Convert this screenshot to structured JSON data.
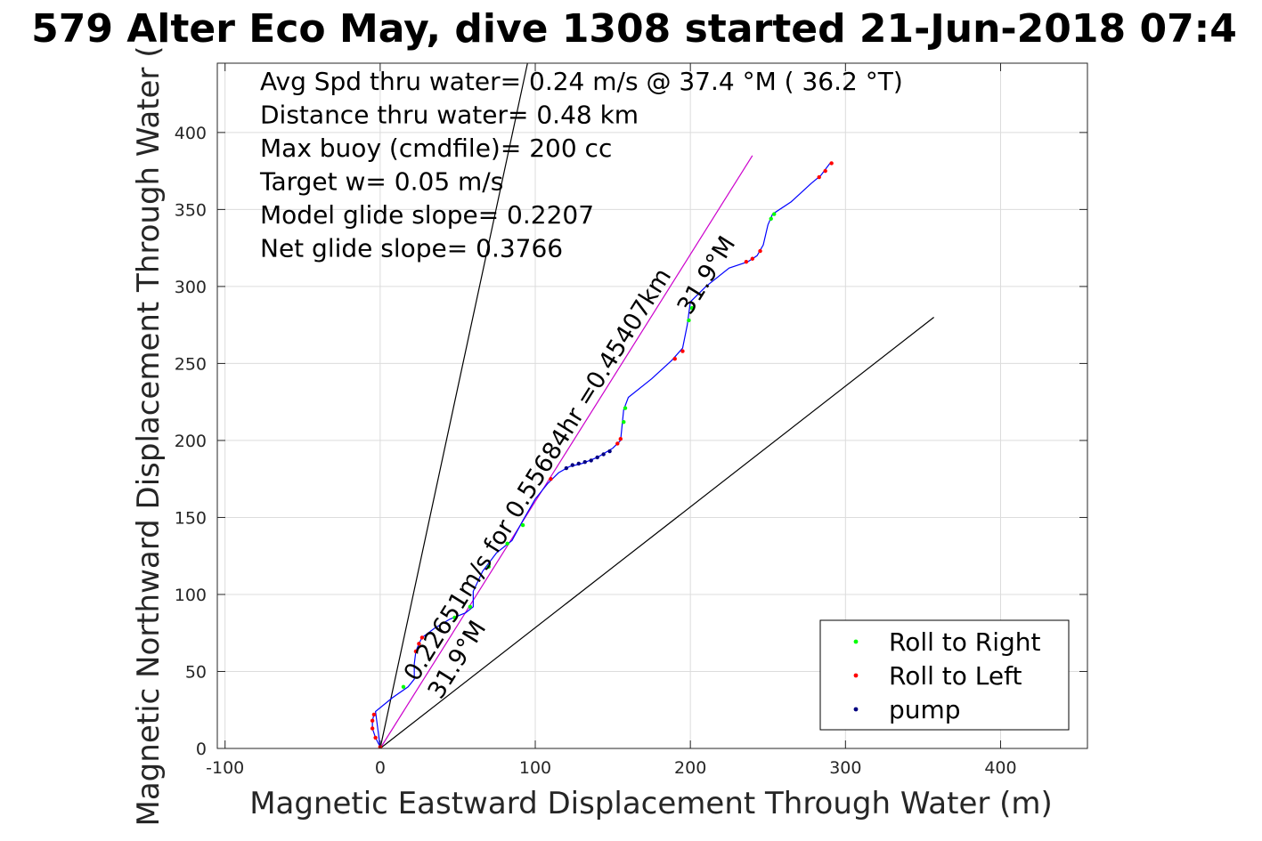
{
  "chart_data": {
    "type": "line",
    "title": "579 Alter Eco May, dive 1308 started 21-Jun-2018 07:4",
    "xlabel": "Magnetic Eastward Displacement Through Water (m)",
    "ylabel": "Magnetic Northward Displacement Through Water (",
    "xlim": [
      -105,
      456
    ],
    "ylim": [
      0,
      445
    ],
    "xticks": [
      -100,
      0,
      100,
      200,
      300,
      400
    ],
    "xtick_labels": [
      "-100",
      "0",
      "100",
      "200",
      "300",
      "400"
    ],
    "yticks": [
      0,
      50,
      100,
      150,
      200,
      250,
      300,
      350,
      400
    ],
    "ytick_labels": [
      "0",
      "50",
      "100",
      "150",
      "200",
      "250",
      "300",
      "350",
      "400"
    ],
    "grid": true,
    "legend_position": "bottom-right",
    "info_lines": [
      "Avg Spd thru water=  0.24 m/s @  37.4 °M ( 36.2 °T)",
      "Distance thru water=  0.48 km",
      "Max buoy (cmdfile)= 200 cc",
      "Target w= 0.05 m/s",
      "Model glide slope= 0.2207",
      "Net glide slope= 0.3766"
    ],
    "annotations": {
      "leg_speed": "0.22651m/s for 0.55684hr =0.45407km",
      "leg_heading": "31.9°M",
      "lower_speed": "0.22651m/s for",
      "lower_heading": "31.9°M"
    },
    "reference_lines": [
      {
        "name": "heading-line",
        "color": "#cc00cc",
        "points": [
          [
            0,
            0
          ],
          [
            240,
            385
          ]
        ]
      },
      {
        "name": "cone-upper",
        "color": "#000000",
        "points": [
          [
            0,
            0
          ],
          [
            95,
            445
          ]
        ]
      },
      {
        "name": "cone-lower",
        "color": "#000000",
        "points": [
          [
            0,
            0
          ],
          [
            357,
            280
          ]
        ]
      }
    ],
    "series": [
      {
        "name": "",
        "color": "#0000ff",
        "points": [
          [
            -4,
            22
          ],
          [
            -5,
            18
          ],
          [
            -5,
            13
          ],
          [
            -3,
            7
          ],
          [
            0,
            1
          ],
          [
            -3,
            24
          ],
          [
            8,
            33
          ],
          [
            18,
            40
          ],
          [
            22,
            45
          ],
          [
            22,
            55
          ],
          [
            23,
            63
          ],
          [
            25,
            68
          ],
          [
            27,
            72
          ],
          [
            35,
            78
          ],
          [
            45,
            84
          ],
          [
            55,
            88
          ],
          [
            60,
            92
          ],
          [
            60,
            102
          ],
          [
            66,
            115
          ],
          [
            75,
            127
          ],
          [
            85,
            135
          ],
          [
            92,
            148
          ],
          [
            100,
            162
          ],
          [
            108,
            172
          ],
          [
            115,
            179
          ],
          [
            122,
            183
          ],
          [
            130,
            185
          ],
          [
            140,
            189
          ],
          [
            150,
            195
          ],
          [
            155,
            200
          ],
          [
            156,
            210
          ],
          [
            157,
            220
          ],
          [
            160,
            228
          ],
          [
            175,
            240
          ],
          [
            188,
            252
          ],
          [
            195,
            260
          ],
          [
            198,
            275
          ],
          [
            200,
            290
          ],
          [
            210,
            300
          ],
          [
            225,
            312
          ],
          [
            237,
            316
          ],
          [
            243,
            320
          ],
          [
            247,
            327
          ],
          [
            250,
            340
          ],
          [
            253,
            347
          ],
          [
            265,
            355
          ],
          [
            278,
            367
          ],
          [
            284,
            372
          ],
          [
            290,
            380
          ]
        ]
      },
      {
        "name": "Roll to Right",
        "color": "#00ff00",
        "points": [
          [
            15,
            40
          ],
          [
            48,
            85
          ],
          [
            58,
            92
          ],
          [
            70,
            118
          ],
          [
            82,
            133
          ],
          [
            92,
            145
          ],
          [
            157,
            212
          ],
          [
            158,
            221
          ],
          [
            199,
            278
          ],
          [
            201,
            286
          ],
          [
            252,
            344
          ],
          [
            254,
            347
          ]
        ]
      },
      {
        "name": "Roll to Left",
        "color": "#ff0000",
        "points": [
          [
            -4,
            22
          ],
          [
            -5,
            18
          ],
          [
            -5,
            13
          ],
          [
            -3,
            7
          ],
          [
            0,
            1
          ],
          [
            23,
            63
          ],
          [
            25,
            68
          ],
          [
            27,
            72
          ],
          [
            110,
            175
          ],
          [
            153,
            198
          ],
          [
            155,
            201
          ],
          [
            190,
            253
          ],
          [
            195,
            258
          ],
          [
            236,
            316
          ],
          [
            240,
            318
          ],
          [
            245,
            323
          ],
          [
            283,
            371
          ],
          [
            287,
            375
          ],
          [
            291,
            380
          ]
        ]
      },
      {
        "name": "pump",
        "color": "#000080",
        "points": [
          [
            120,
            182
          ],
          [
            124,
            184
          ],
          [
            128,
            185
          ],
          [
            132,
            186
          ],
          [
            136,
            187
          ],
          [
            140,
            189
          ],
          [
            144,
            191
          ],
          [
            148,
            193
          ]
        ]
      }
    ]
  }
}
